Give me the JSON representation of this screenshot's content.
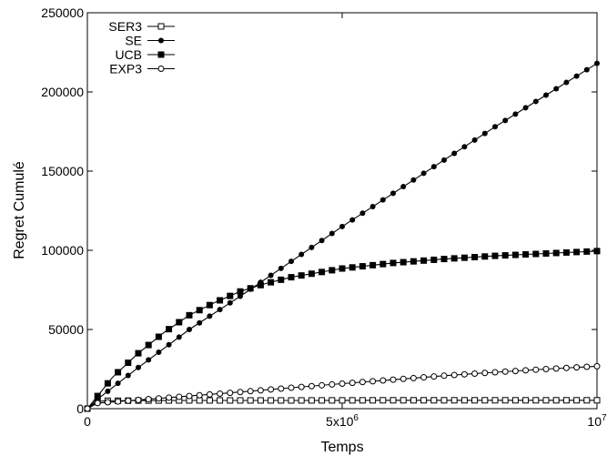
{
  "chart_data": {
    "type": "line",
    "title": "",
    "xlabel": "Temps",
    "ylabel": "Regret Cumulé",
    "xlim": [
      0,
      10000000
    ],
    "ylim": [
      0,
      250000
    ],
    "grid": false,
    "legend_position": "top-left",
    "x_ticks": [
      {
        "value": 0,
        "label": "0"
      },
      {
        "value": 5000000,
        "label": "5x10",
        "sup": "6"
      },
      {
        "value": 10000000,
        "label": "10",
        "sup": "7"
      }
    ],
    "y_ticks": [
      {
        "value": 0,
        "label": "0"
      },
      {
        "value": 50000,
        "label": "50000"
      },
      {
        "value": 100000,
        "label": "100000"
      },
      {
        "value": 150000,
        "label": "150000"
      },
      {
        "value": 200000,
        "label": "200000"
      },
      {
        "value": 250000,
        "label": "250000"
      }
    ],
    "series": [
      {
        "name": "SER3",
        "marker": "square-open",
        "points": [
          [
            0,
            0
          ],
          [
            200000,
            4600
          ],
          [
            400000,
            5000
          ],
          [
            1000000,
            5100
          ],
          [
            2000000,
            5200
          ],
          [
            4000000,
            5200
          ],
          [
            6000000,
            5300
          ],
          [
            8000000,
            5300
          ],
          [
            10000000,
            5300
          ]
        ]
      },
      {
        "name": "SE",
        "marker": "circle-filled",
        "points": [
          [
            0,
            0
          ],
          [
            200000,
            6000
          ],
          [
            1000000,
            26000
          ],
          [
            2000000,
            50000
          ],
          [
            3000000,
            71000
          ],
          [
            4000000,
            93000
          ],
          [
            5000000,
            115000
          ],
          [
            6000000,
            136000
          ],
          [
            7000000,
            157000
          ],
          [
            8000000,
            178000
          ],
          [
            9000000,
            198000
          ],
          [
            10000000,
            218000
          ]
        ]
      },
      {
        "name": "UCB",
        "marker": "square-filled",
        "points": [
          [
            0,
            0
          ],
          [
            200000,
            8000
          ],
          [
            500000,
            20000
          ],
          [
            1000000,
            35000
          ],
          [
            1500000,
            48000
          ],
          [
            2000000,
            59000
          ],
          [
            2500000,
            67000
          ],
          [
            3000000,
            74000
          ],
          [
            3500000,
            79000
          ],
          [
            4000000,
            83000
          ],
          [
            5000000,
            88500
          ],
          [
            6000000,
            92000
          ],
          [
            7000000,
            94500
          ],
          [
            8000000,
            96500
          ],
          [
            9000000,
            98000
          ],
          [
            10000000,
            99500
          ]
        ]
      },
      {
        "name": "EXP3",
        "marker": "circle-open",
        "points": [
          [
            0,
            0
          ],
          [
            200000,
            3500
          ],
          [
            1000000,
            5500
          ],
          [
            2000000,
            8000
          ],
          [
            3000000,
            10500
          ],
          [
            4000000,
            13200
          ],
          [
            5000000,
            15800
          ],
          [
            6000000,
            18300
          ],
          [
            7000000,
            20800
          ],
          [
            8000000,
            23000
          ],
          [
            9000000,
            25000
          ],
          [
            10000000,
            26800
          ]
        ]
      }
    ]
  }
}
